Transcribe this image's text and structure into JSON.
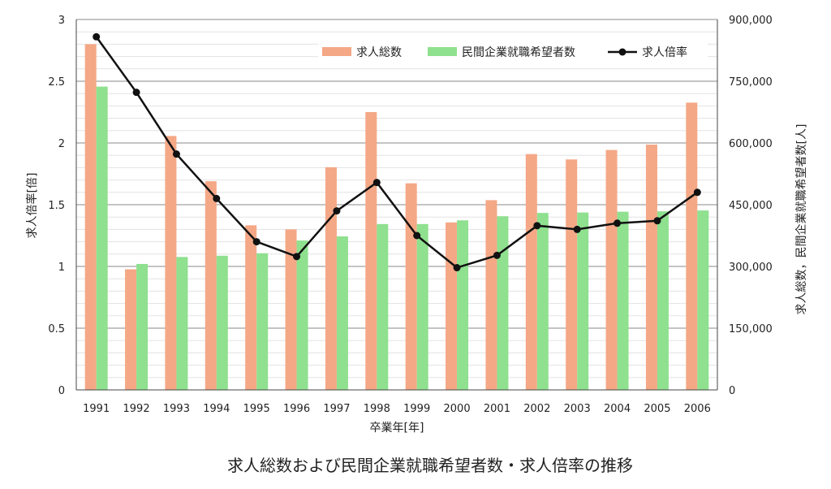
{
  "chart_data": {
    "type": "bar",
    "title": "求人総数および民間企業就職希望者数・求人倍率の推移",
    "xlabel": "卒業年[年]",
    "ylabel_left": "求人倍率[倍]",
    "ylabel_right": "求人総数，民間企業就職希望者数[人]",
    "categories": [
      "1991",
      "1992",
      "1993",
      "1994",
      "1995",
      "1996",
      "1997",
      "1998",
      "1999",
      "2000",
      "2001",
      "2002",
      "2003",
      "2004",
      "2005",
      "2006"
    ],
    "y_left": {
      "min": 0,
      "max": 3,
      "ticks": [
        0,
        0.5,
        1,
        1.5,
        2,
        2.5,
        3
      ],
      "tick_labels": [
        "0",
        "0.5",
        "1",
        "1.5",
        "2",
        "2.5",
        "3"
      ]
    },
    "y_right": {
      "min": 0,
      "max": 900000,
      "ticks": [
        0,
        150000,
        300000,
        450000,
        600000,
        750000,
        900000
      ],
      "tick_labels": [
        "0",
        "150,000",
        "300,000",
        "450,000",
        "600,000",
        "750,000",
        "900,000"
      ]
    },
    "grid": true,
    "legend_position": "top-right",
    "series": [
      {
        "name": "求人総数",
        "kind": "bar",
        "axis": "right",
        "color": "#f4a886",
        "values": [
          840000,
          293000,
          617000,
          507000,
          400000,
          390000,
          541000,
          675000,
          502000,
          407000,
          461000,
          573000,
          560000,
          583000,
          596000,
          698000
        ]
      },
      {
        "name": "民間企業就職希望者数",
        "kind": "bar",
        "axis": "right",
        "color": "#8fe08f",
        "values": [
          737000,
          306000,
          323000,
          326000,
          332000,
          363000,
          373000,
          403000,
          403000,
          412000,
          422000,
          430000,
          431000,
          433000,
          434000,
          436000
        ]
      },
      {
        "name": "求人倍率",
        "kind": "line",
        "axis": "left",
        "color": "#111111",
        "values": [
          2.86,
          2.41,
          1.91,
          1.55,
          1.2,
          1.08,
          1.45,
          1.68,
          1.25,
          0.99,
          1.09,
          1.33,
          1.3,
          1.35,
          1.37,
          1.6
        ]
      }
    ]
  }
}
